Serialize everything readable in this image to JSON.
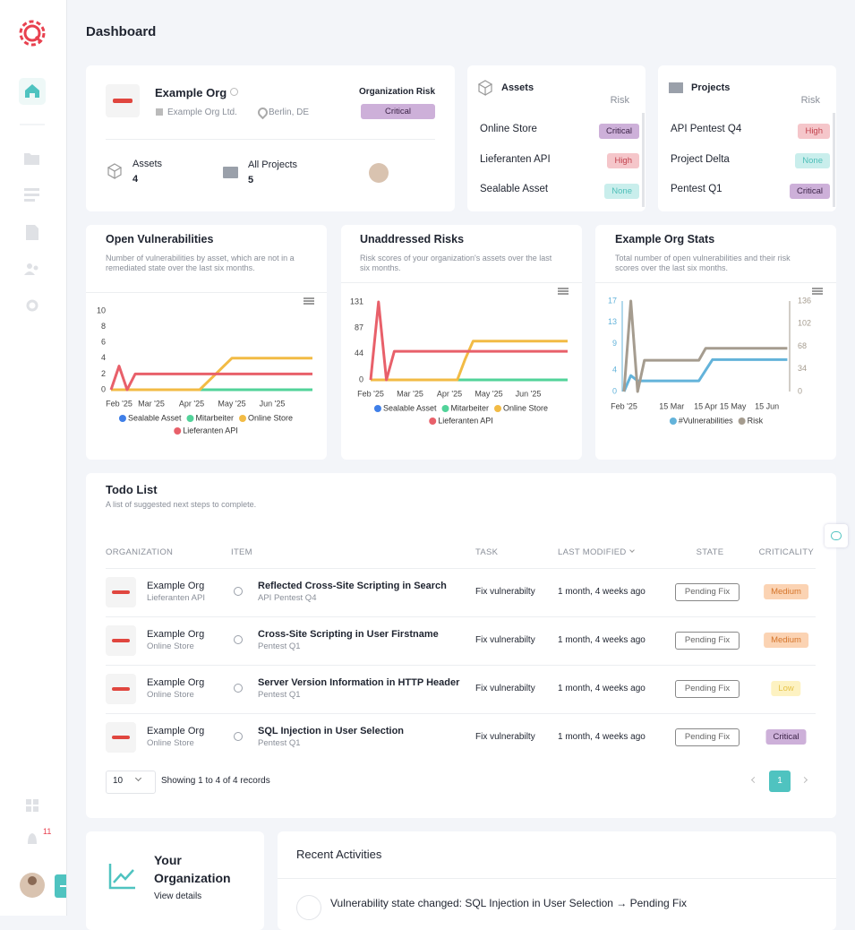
{
  "header": {
    "title": "Dashboard"
  },
  "sidebar": {
    "notification_count": 11
  },
  "badge_styles": {
    "Critical": {
      "background": "#cdb0d9",
      "color": "#3b2347"
    },
    "High": {
      "background": "#f5c6ca",
      "color": "#c2434e"
    },
    "None": {
      "background": "#c9eeec",
      "color": "#4ebfb9"
    },
    "Medium": {
      "background": "#fbd3b3",
      "color": "#d5752b"
    },
    "Low": {
      "background": "#fdf2c2",
      "color": "#e6c34a"
    }
  },
  "org_card": {
    "name": "Example Org",
    "legal_name": "Example Org Ltd.",
    "location": "Berlin, DE",
    "risk_label": "Organization Risk",
    "risk": "Critical",
    "assets_label": "Assets",
    "assets_count": 4,
    "projects_label": "All Projects",
    "projects_count": 5
  },
  "assets_card": {
    "title": "Assets",
    "risk_label": "Risk",
    "rows": [
      {
        "name": "Online Store",
        "risk": "Critical"
      },
      {
        "name": "Lieferanten API",
        "risk": "High"
      },
      {
        "name": "Sealable Asset",
        "risk": "None"
      }
    ]
  },
  "projects_card": {
    "title": "Projects",
    "risk_label": "Risk",
    "rows": [
      {
        "name": "API Pentest Q4",
        "risk": "High"
      },
      {
        "name": "Project Delta",
        "risk": "None"
      },
      {
        "name": "Pentest Q1",
        "risk": "Critical"
      }
    ]
  },
  "chart_data": [
    {
      "type": "line",
      "title": "Open Vulnerabilities",
      "subtitle": "Number of vulnerabilities by asset, which are not in a remediated state over the last six months.",
      "categories": [
        null,
        "Feb '25",
        null,
        null,
        null,
        "Mar '25",
        null,
        null,
        null,
        null,
        "Apr '25",
        null,
        null,
        null,
        null,
        "May '25",
        null,
        null,
        null,
        null,
        "Jun '25",
        null,
        null,
        null,
        null,
        null
      ],
      "ylim": [
        0,
        10
      ],
      "yticks": [
        0,
        2,
        4,
        6,
        8,
        10
      ],
      "legend": "bottom",
      "series": [
        {
          "name": "Sealable Asset",
          "color": "#3f7fe8",
          "values": [
            0,
            0,
            0,
            0,
            0,
            0,
            0,
            0,
            0,
            0,
            0,
            0,
            0,
            0,
            0,
            0,
            0,
            0,
            0,
            0,
            0,
            0,
            0,
            0,
            0,
            0
          ]
        },
        {
          "name": "Mitarbeiter",
          "color": "#52d39a",
          "values": [
            0,
            0,
            0,
            0,
            0,
            0,
            0,
            0,
            0,
            0,
            0,
            0,
            0,
            0,
            0,
            0,
            0,
            0,
            0,
            0,
            0,
            0,
            0,
            0,
            0,
            0
          ]
        },
        {
          "name": "Online Store",
          "color": "#f2bb45",
          "values": [
            0,
            0,
            0,
            0,
            0,
            0,
            0,
            0,
            0,
            0,
            0,
            0,
            1,
            2,
            3,
            4,
            4,
            4,
            4,
            4,
            4,
            4,
            4,
            4,
            4,
            4
          ]
        },
        {
          "name": "Lieferanten API",
          "color": "#e8606a",
          "values": [
            0,
            3,
            0,
            2,
            2,
            2,
            2,
            2,
            2,
            2,
            2,
            2,
            2,
            2,
            2,
            2,
            2,
            2,
            2,
            2,
            2,
            2,
            2,
            2,
            2,
            2
          ]
        }
      ]
    },
    {
      "type": "line",
      "title": "Unaddressed Risks",
      "subtitle": "Risk scores of your organization's assets over the last six months.",
      "categories": [
        "Feb '25",
        null,
        null,
        null,
        null,
        "Mar '25",
        null,
        null,
        null,
        null,
        "Apr '25",
        null,
        null,
        null,
        null,
        "May '25",
        null,
        null,
        null,
        null,
        "Jun '25",
        null,
        null,
        null,
        null,
        null
      ],
      "ylim": [
        0,
        131
      ],
      "yticks": [
        0,
        44,
        87,
        131
      ],
      "legend": "bottom",
      "series": [
        {
          "name": "Sealable Asset",
          "color": "#3f7fe8",
          "values": [
            0,
            0,
            0,
            0,
            0,
            0,
            0,
            0,
            0,
            0,
            0,
            0,
            0,
            0,
            0,
            0,
            0,
            0,
            0,
            0,
            0,
            0,
            0,
            0,
            0,
            0
          ]
        },
        {
          "name": "Mitarbeiter",
          "color": "#52d39a",
          "values": [
            0,
            0,
            0,
            0,
            0,
            0,
            0,
            0,
            0,
            0,
            0,
            0,
            0,
            0,
            0,
            0,
            0,
            0,
            0,
            0,
            0,
            0,
            0,
            0,
            0,
            0
          ]
        },
        {
          "name": "Online Store",
          "color": "#f2bb45",
          "values": [
            0,
            0,
            0,
            0,
            0,
            0,
            0,
            0,
            0,
            0,
            0,
            0,
            35,
            65,
            65,
            65,
            65,
            65,
            65,
            65,
            65,
            65,
            65,
            65,
            65,
            65
          ]
        },
        {
          "name": "Lieferanten API",
          "color": "#e8606a",
          "values": [
            0,
            131,
            0,
            48,
            48,
            48,
            48,
            48,
            48,
            48,
            48,
            48,
            48,
            48,
            48,
            48,
            48,
            48,
            48,
            48,
            48,
            48,
            48,
            48,
            48,
            48
          ]
        }
      ]
    },
    {
      "type": "line",
      "title": "Example Org Stats",
      "subtitle": "Total number of open vulnerabilities and their risk scores over the last six months.",
      "categories": [
        "Feb '25",
        null,
        null,
        null,
        null,
        null,
        null,
        "15 Mar",
        null,
        null,
        null,
        null,
        "15 Apr",
        null,
        null,
        null,
        "15 May",
        null,
        null,
        null,
        null,
        "15 Jun",
        null,
        null,
        null
      ],
      "ylim": [
        0,
        17
      ],
      "yticks": [
        0,
        4,
        9,
        13,
        17
      ],
      "y2lim": [
        0,
        136
      ],
      "y2ticks": [
        0,
        34,
        68,
        102,
        136
      ],
      "legend": "bottom",
      "series": [
        {
          "name": "#Vulnerabilities",
          "color": "#63b3da",
          "values": [
            0,
            3,
            2,
            2,
            2,
            2,
            2,
            2,
            2,
            2,
            2,
            2,
            4,
            6,
            6,
            6,
            6,
            6,
            6,
            6,
            6,
            6,
            6,
            6,
            6
          ]
        },
        {
          "name": "Risk",
          "color": "#a59c8f",
          "axis": "y2",
          "values": [
            0,
            136,
            0,
            47,
            47,
            47,
            47,
            47,
            47,
            47,
            47,
            47,
            65,
            65,
            65,
            65,
            65,
            65,
            65,
            65,
            65,
            65,
            65,
            65,
            65
          ]
        }
      ]
    }
  ],
  "todo": {
    "title": "Todo List",
    "subtitle": "A list of suggested next steps to complete.",
    "columns": [
      "ORGANIZATION",
      "ITEM",
      "TASK",
      "LAST MODIFIED",
      "STATE",
      "CRITICALITY"
    ],
    "rows": [
      {
        "organization": "Example Org",
        "asset": "Lieferanten API",
        "item": "Reflected Cross-Site Scripting in Search",
        "project": "API Pentest Q4",
        "task": "Fix vulnerabilty",
        "modified": "1 month, 4 weeks ago",
        "state": "Pending Fix",
        "criticality": "Medium"
      },
      {
        "organization": "Example Org",
        "asset": "Online Store",
        "item": "Cross-Site Scripting in User Firstname",
        "project": "Pentest Q1",
        "task": "Fix vulnerabilty",
        "modified": "1 month, 4 weeks ago",
        "state": "Pending Fix",
        "criticality": "Medium"
      },
      {
        "organization": "Example Org",
        "asset": "Online Store",
        "item": "Server Version Information in HTTP Header",
        "project": "Pentest Q1",
        "task": "Fix vulnerabilty",
        "modified": "1 month, 4 weeks ago",
        "state": "Pending Fix",
        "criticality": "Low"
      },
      {
        "organization": "Example Org",
        "asset": "Online Store",
        "item": "SQL Injection in User Selection",
        "project": "Pentest Q1",
        "task": "Fix vulnerabilty",
        "modified": "1 month, 4 weeks ago",
        "state": "Pending Fix",
        "criticality": "Critical"
      }
    ],
    "page_size": 10,
    "records_text": "Showing 1 to 4 of 4 records",
    "current_page": 1
  },
  "organization_card": {
    "title": "Your Organization",
    "link": "View details"
  },
  "activities": {
    "title": "Recent Activities",
    "items": [
      "Vulnerability state changed: SQL Injection in User Selection → Pending Fix"
    ]
  }
}
